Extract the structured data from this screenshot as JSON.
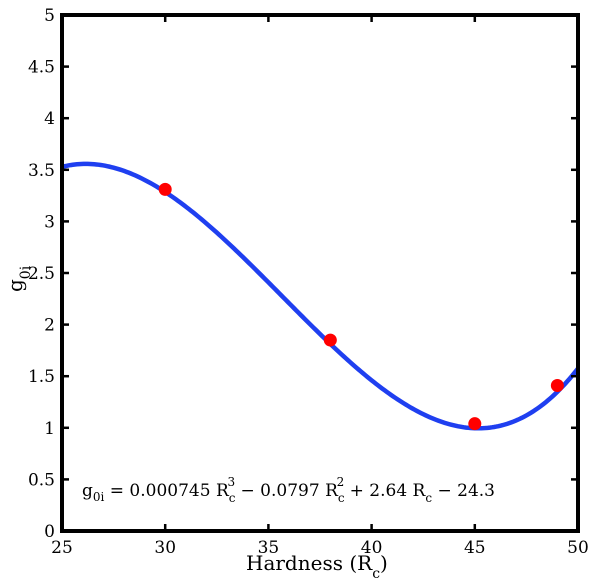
{
  "chart_data": {
    "type": "scatter",
    "title": "",
    "xlabel": "Hardness (R",
    "xlabel_subscript": "c",
    "xlabel_suffix": ")",
    "ylabel": "g",
    "ylabel_subscript": "0i",
    "xlim": [
      25,
      50
    ],
    "ylim": [
      0,
      5
    ],
    "xticks": [
      "25",
      "30",
      "35",
      "40",
      "45",
      "50"
    ],
    "yticks": [
      "0",
      "0.5",
      "1",
      "1.5",
      "2",
      "2.5",
      "3",
      "3.5",
      "4",
      "4.5",
      "5"
    ],
    "grid": false,
    "series": [
      {
        "kind": "points",
        "color": "#ff0000",
        "x": [
          30,
          38,
          45,
          49
        ],
        "y": [
          3.31,
          1.85,
          1.04,
          1.41
        ]
      },
      {
        "kind": "fit",
        "color": "#1f3ff0",
        "coefficients": [
          0.000745,
          -0.0797,
          2.64,
          -24.3
        ]
      }
    ],
    "annotation": {
      "g": "g",
      "g_sub": "0i",
      "part1": " = 0.000745 R",
      "sub1": "c",
      "sup1": "3",
      "part2": " − 0.0797 R",
      "sub2": "c",
      "sup2": "2",
      "part3": " + 2.64 R",
      "sub3": "c",
      "part4": " − 24.3"
    }
  }
}
